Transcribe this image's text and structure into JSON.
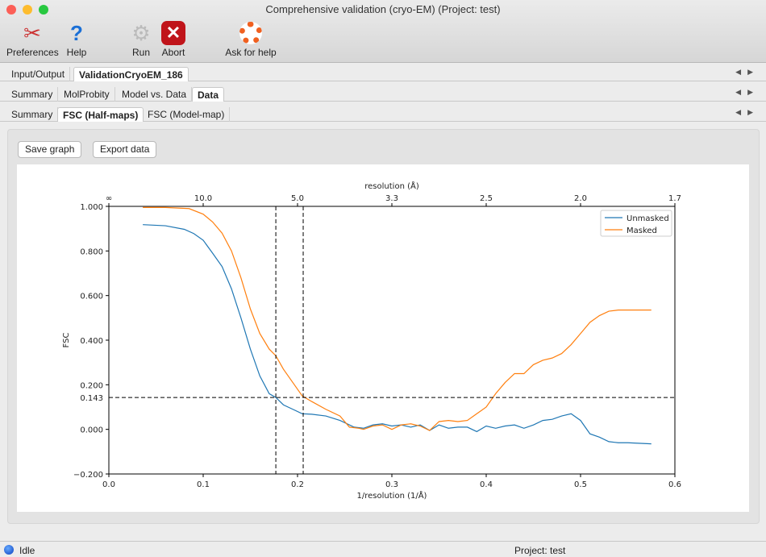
{
  "window": {
    "title": "Comprehensive validation (cryo-EM) (Project: test)"
  },
  "toolbar": [
    {
      "label": "Preferences",
      "icon": "wrench-screwdriver-icon"
    },
    {
      "label": "Help",
      "icon": "question-icon"
    },
    {
      "label": "Run",
      "icon": "gear-icon"
    },
    {
      "label": "Abort",
      "icon": "stop-x-icon"
    },
    {
      "label": "Ask for help",
      "icon": "lifebuoy-icon"
    }
  ],
  "tabs1": [
    "Input/Output",
    "ValidationCryoEM_186"
  ],
  "tabs2": [
    "Summary",
    "MolProbity",
    "Model vs. Data",
    "Data"
  ],
  "tabs3": [
    "Summary",
    "FSC (Half-maps)",
    "FSC (Model-map)"
  ],
  "buttons": {
    "save": "Save graph",
    "export": "Export data"
  },
  "status": {
    "left": "Idle",
    "right": "Project: test"
  },
  "chart_data": {
    "type": "line",
    "xlabel": "1/resolution (1/Å)",
    "ylabel": "FSC",
    "top_xlabel": "resolution (Å)",
    "xlim": [
      0,
      0.6
    ],
    "ylim": [
      -0.2,
      1.0
    ],
    "xticks": [
      "0.0",
      "0.1",
      "0.2",
      "0.3",
      "0.4",
      "0.5",
      "0.6"
    ],
    "yticks": [
      "−0.200",
      "0.000",
      "0.200",
      "0.400",
      "0.600",
      "0.800",
      "1.000"
    ],
    "top_ticks": [
      "∞",
      "10.0",
      "5.0",
      "3.3",
      "2.5",
      "2.0",
      "1.7"
    ],
    "threshold": {
      "y": 0.143,
      "label": "0.143"
    },
    "vlines": [
      0.177,
      0.206
    ],
    "legend": "top-right",
    "series": [
      {
        "name": "Unmasked",
        "color": "#1f77b4",
        "x": [
          0.036,
          0.06,
          0.08,
          0.09,
          0.1,
          0.11,
          0.12,
          0.13,
          0.14,
          0.15,
          0.16,
          0.17,
          0.177,
          0.185,
          0.195,
          0.205,
          0.215,
          0.23,
          0.245,
          0.26,
          0.27,
          0.28,
          0.29,
          0.3,
          0.31,
          0.32,
          0.33,
          0.34,
          0.35,
          0.36,
          0.37,
          0.38,
          0.39,
          0.4,
          0.41,
          0.42,
          0.43,
          0.44,
          0.45,
          0.46,
          0.47,
          0.48,
          0.49,
          0.5,
          0.51,
          0.52,
          0.53,
          0.54,
          0.55,
          0.575
        ],
        "y": [
          0.918,
          0.913,
          0.897,
          0.878,
          0.848,
          0.79,
          0.73,
          0.63,
          0.5,
          0.36,
          0.24,
          0.16,
          0.143,
          0.11,
          0.09,
          0.07,
          0.068,
          0.06,
          0.04,
          0.01,
          0.005,
          0.02,
          0.025,
          0.015,
          0.02,
          0.01,
          0.02,
          -0.005,
          0.02,
          0.005,
          0.01,
          0.01,
          -0.01,
          0.015,
          0.005,
          0.015,
          0.02,
          0.005,
          0.02,
          0.04,
          0.045,
          0.06,
          0.07,
          0.04,
          -0.02,
          -0.035,
          -0.055,
          -0.06,
          -0.06,
          -0.065
        ]
      },
      {
        "name": "Masked",
        "color": "#ff7f0e",
        "x": [
          0.036,
          0.06,
          0.085,
          0.1,
          0.11,
          0.12,
          0.13,
          0.14,
          0.15,
          0.16,
          0.17,
          0.177,
          0.185,
          0.195,
          0.205,
          0.215,
          0.23,
          0.245,
          0.255,
          0.265,
          0.27,
          0.28,
          0.29,
          0.3,
          0.31,
          0.32,
          0.33,
          0.34,
          0.35,
          0.36,
          0.37,
          0.38,
          0.39,
          0.4,
          0.41,
          0.42,
          0.43,
          0.44,
          0.45,
          0.46,
          0.47,
          0.48,
          0.49,
          0.5,
          0.51,
          0.52,
          0.53,
          0.54,
          0.575
        ],
        "y": [
          0.995,
          0.995,
          0.99,
          0.965,
          0.93,
          0.88,
          0.8,
          0.68,
          0.54,
          0.43,
          0.36,
          0.33,
          0.27,
          0.21,
          0.15,
          0.125,
          0.09,
          0.06,
          0.01,
          0.005,
          0,
          0.015,
          0.02,
          0,
          0.02,
          0.025,
          0.015,
          -0.005,
          0.035,
          0.04,
          0.035,
          0.04,
          0.07,
          0.1,
          0.16,
          0.21,
          0.25,
          0.25,
          0.29,
          0.31,
          0.32,
          0.34,
          0.38,
          0.43,
          0.48,
          0.51,
          0.53,
          0.535,
          0.535
        ]
      }
    ]
  }
}
